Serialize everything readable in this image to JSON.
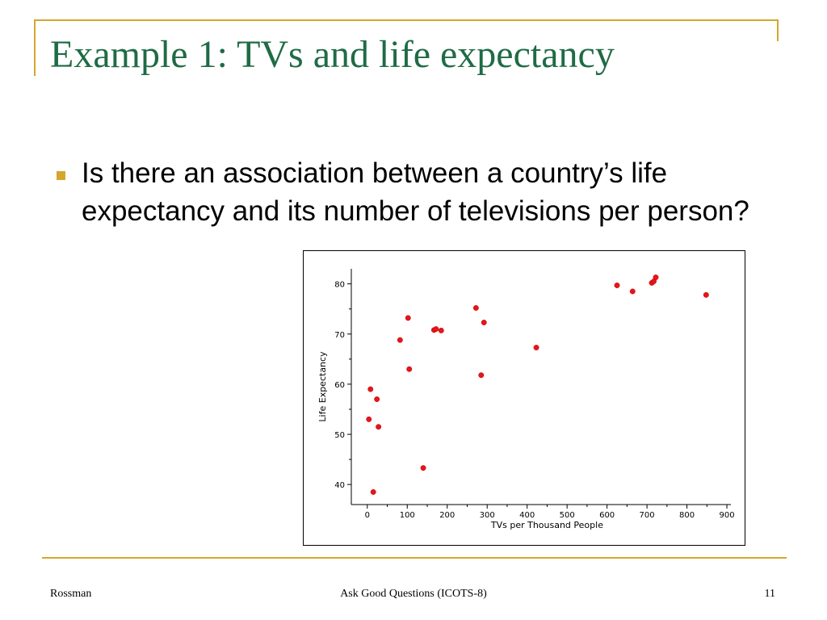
{
  "slide": {
    "title": "Example 1: TVs and life expectancy",
    "bullet": "Is there an association between a country’s life expectancy and its number of televisions per person?"
  },
  "footer": {
    "left": "Rossman",
    "center": "Ask Good Questions (ICOTS-8)",
    "page": "11"
  },
  "colors": {
    "accent": "#d4a72c",
    "title": "#1f6b45",
    "points": "#e8141c"
  },
  "chart_data": {
    "type": "scatter",
    "xlabel": "TVs per Thousand People",
    "ylabel": "Life Expectancy",
    "xlim": [
      -40,
      910
    ],
    "ylim": [
      36,
      83
    ],
    "xticks": [
      0,
      100,
      200,
      300,
      400,
      500,
      600,
      700,
      800,
      900
    ],
    "yticks": [
      40,
      50,
      60,
      70,
      80
    ],
    "x_minor_step": 50,
    "y_minor_step": 5,
    "grid": false,
    "points": [
      {
        "x": 4,
        "y": 53
      },
      {
        "x": 8,
        "y": 59
      },
      {
        "x": 15,
        "y": 38.5
      },
      {
        "x": 24,
        "y": 57
      },
      {
        "x": 28,
        "y": 51.5
      },
      {
        "x": 82,
        "y": 68.8
      },
      {
        "x": 102,
        "y": 73.2
      },
      {
        "x": 105,
        "y": 63
      },
      {
        "x": 140,
        "y": 43.3
      },
      {
        "x": 167,
        "y": 70.8
      },
      {
        "x": 172,
        "y": 71
      },
      {
        "x": 185,
        "y": 70.7
      },
      {
        "x": 272,
        "y": 75.2
      },
      {
        "x": 285,
        "y": 61.8
      },
      {
        "x": 292,
        "y": 72.3
      },
      {
        "x": 423,
        "y": 67.3
      },
      {
        "x": 625,
        "y": 79.7
      },
      {
        "x": 664,
        "y": 78.5
      },
      {
        "x": 712,
        "y": 80.2
      },
      {
        "x": 717,
        "y": 80.5
      },
      {
        "x": 722,
        "y": 81.3
      },
      {
        "x": 848,
        "y": 77.8
      }
    ]
  }
}
